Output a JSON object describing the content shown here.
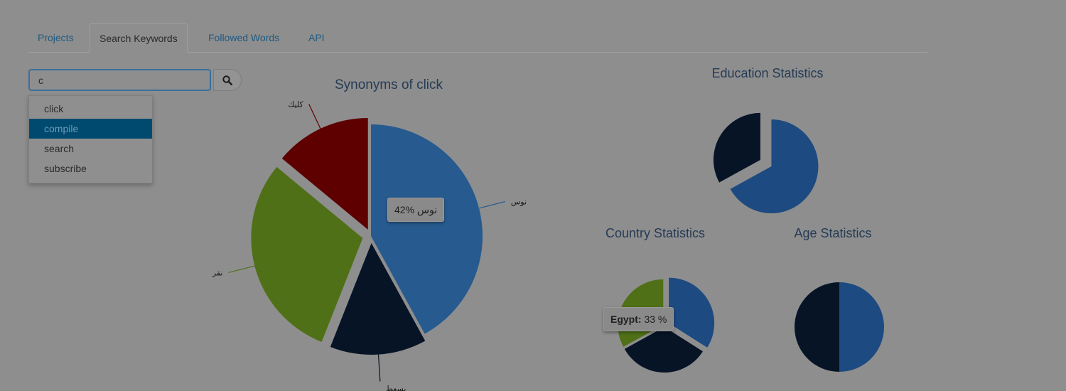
{
  "tabs": [
    {
      "label": "Projects",
      "active": false
    },
    {
      "label": "Search Keywords",
      "active": true
    },
    {
      "label": "Followed Words",
      "active": false
    },
    {
      "label": "API",
      "active": false
    }
  ],
  "search": {
    "value": "c",
    "button_icon": "search-icon"
  },
  "suggestions": [
    {
      "label": "click",
      "active": false
    },
    {
      "label": "compile",
      "active": true
    },
    {
      "label": "search",
      "active": false
    },
    {
      "label": "subscribe",
      "active": false
    }
  ],
  "chart_data": [
    {
      "type": "pie",
      "title": "Synonyms of click",
      "slices": [
        {
          "label": "نوس",
          "value": 42,
          "color": "#275b8f"
        },
        {
          "label": "بسعط",
          "value": 14,
          "color": "#061426"
        },
        {
          "label": "نقر",
          "value": 30,
          "color": "#4f7016"
        },
        {
          "label": "كليك",
          "value": 14,
          "color": "#5e0000"
        }
      ],
      "tooltip": {
        "label": "نوس",
        "value_text": "42%"
      }
    },
    {
      "type": "pie",
      "title": "Education Statistics",
      "slices": [
        {
          "label": "",
          "value": 67,
          "color": "#1d4a80"
        },
        {
          "label": "",
          "value": 33,
          "color": "#061426"
        }
      ]
    },
    {
      "type": "pie",
      "title": "Country Statistics",
      "slices": [
        {
          "label": "",
          "value": 34,
          "color": "#1d4a80"
        },
        {
          "label": "",
          "value": 33,
          "color": "#061426"
        },
        {
          "label": "Egypt",
          "value": 33,
          "color": "#4f7016"
        }
      ],
      "tooltip": {
        "label": "Egypt",
        "value_text": "33 %"
      }
    },
    {
      "type": "pie",
      "title": "Age Statistics",
      "slices": [
        {
          "label": "",
          "value": 50,
          "color": "#1d4a80"
        },
        {
          "label": "",
          "value": 50,
          "color": "#061426"
        }
      ]
    }
  ]
}
